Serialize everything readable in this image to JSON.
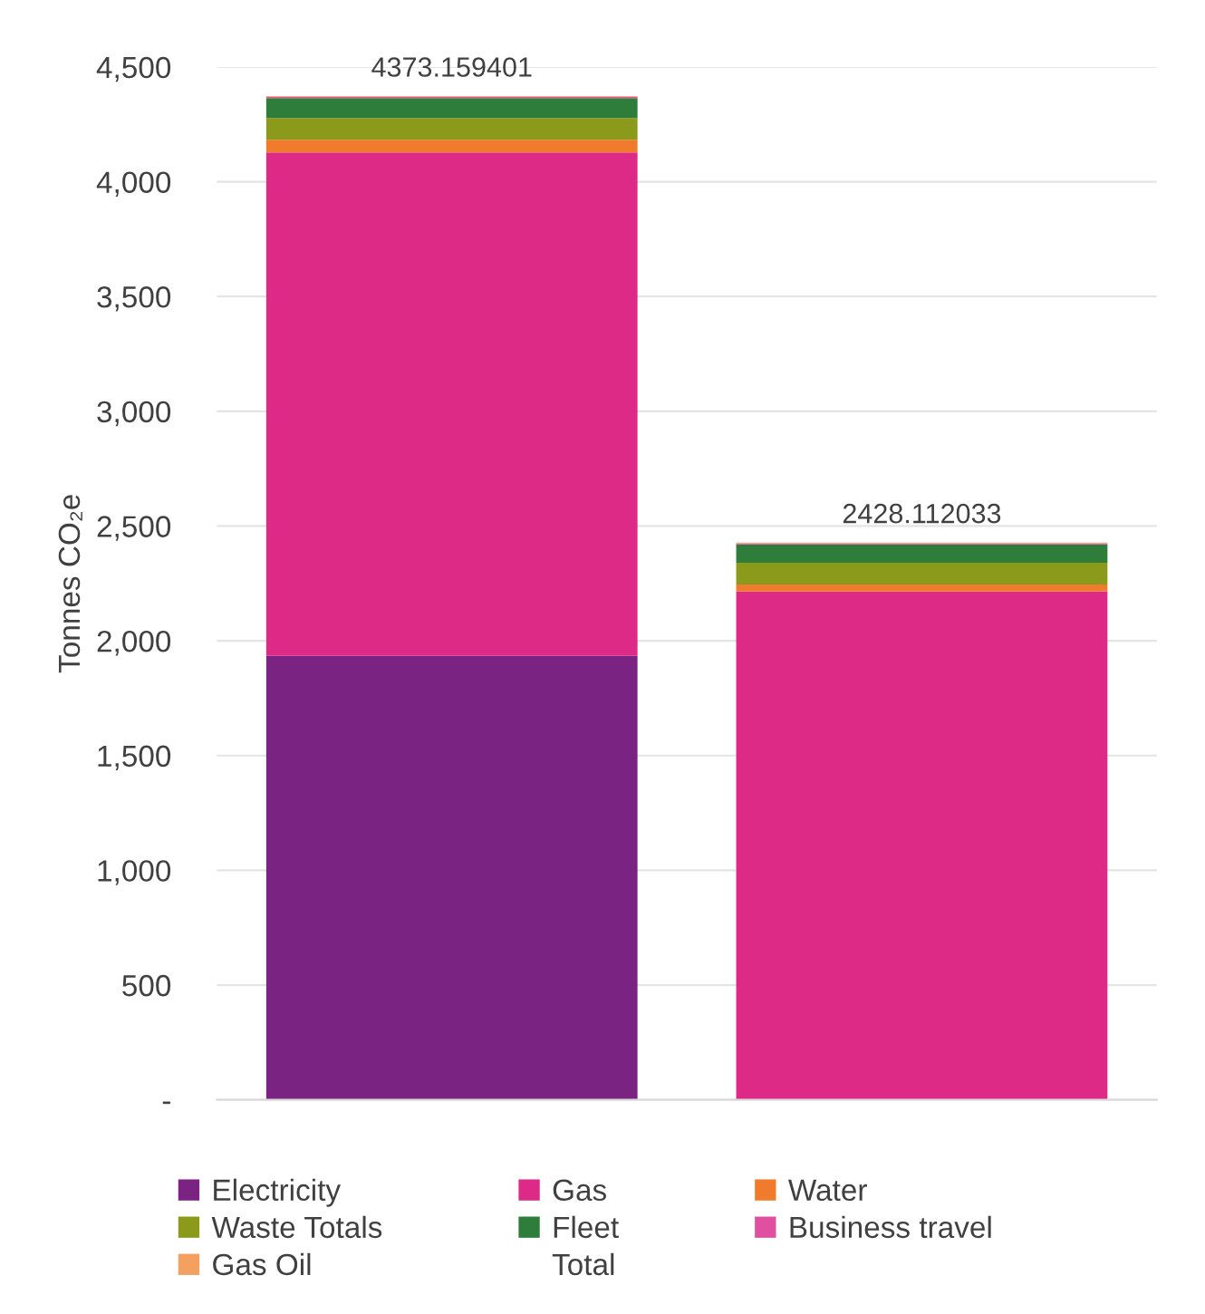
{
  "chart_data": {
    "type": "bar",
    "stacked": true,
    "ylabel": "Tonnes CO₂e",
    "categories": [
      null,
      null
    ],
    "series": [
      {
        "name": "Electricity",
        "color": "#7b2382",
        "values": [
          1934,
          0
        ]
      },
      {
        "name": "Gas",
        "color": "#dc2a86",
        "values": [
          2194,
          2215
        ]
      },
      {
        "name": "Water",
        "color": "#f07b2c",
        "values": [
          55,
          30
        ]
      },
      {
        "name": "Waste Totals",
        "color": "#8b9a1b",
        "values": [
          95,
          95
        ]
      },
      {
        "name": "Fleet",
        "color": "#2e7d3a",
        "values": [
          87,
          80
        ]
      },
      {
        "name": "Business travel",
        "color": "#e050a0",
        "values": [
          5,
          5
        ]
      },
      {
        "name": "Gas Oil",
        "color": "#f4a060",
        "values": [
          3.159401,
          3.112033
        ]
      },
      {
        "name": "Total",
        "color": null,
        "values": [
          null,
          null
        ]
      }
    ],
    "totals": [
      "4373.159401",
      "2428.112033"
    ],
    "ylim": [
      0,
      4500
    ],
    "yticks": [
      {
        "value": 0,
        "label": "-"
      },
      500,
      {
        "value": 1000,
        "label": "1,000"
      },
      {
        "value": 1500,
        "label": "1,500"
      },
      {
        "value": 2000,
        "label": "2,000"
      },
      {
        "value": 2500,
        "label": "2,500"
      },
      {
        "value": 3000,
        "label": "3,000"
      },
      {
        "value": 3500,
        "label": "3,500"
      },
      {
        "value": 4000,
        "label": "4,000"
      },
      {
        "value": 4500,
        "label": "4,500"
      }
    ],
    "grid": "y",
    "legend": "bottom"
  }
}
